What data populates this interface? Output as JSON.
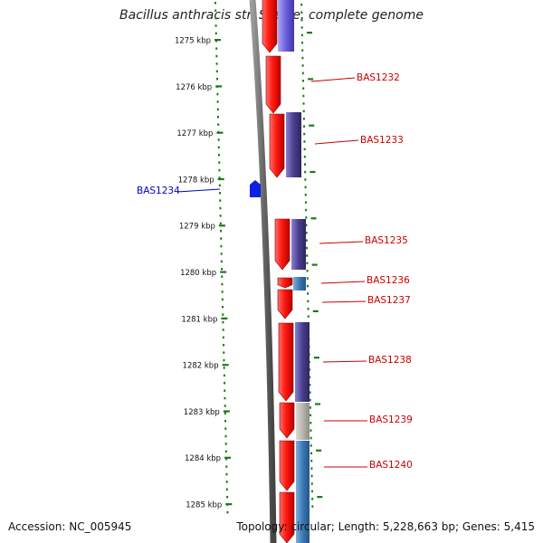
{
  "title": "Bacillus anthracis str. Sterne, complete genome",
  "footer": {
    "accession": "Accession: NC_005945",
    "summary": "Topology: circular; Length: 5,228,663 bp; Genes: 5,415"
  },
  "colors": {
    "forward_gene": "#e8201c",
    "reverse_gene_purple": "#4a3f8f",
    "reverse_gene_blue": "#3b78b4",
    "reverse_gene_grey": "#b8b4ae",
    "left_gene": "#1020e0",
    "tick": "#1a7a1a",
    "label_red": "#cc0000",
    "label_blue": "#0000cc"
  },
  "ruler": {
    "unit": "kbp",
    "ticks": [
      {
        "value": 1275,
        "label": "1275 kbp"
      },
      {
        "value": 1276,
        "label": "1276 kbp"
      },
      {
        "value": 1277,
        "label": "1277 kbp"
      },
      {
        "value": 1278,
        "label": "1278 kbp"
      },
      {
        "value": 1279,
        "label": "1279 kbp"
      },
      {
        "value": 1280,
        "label": "1280 kbp"
      },
      {
        "value": 1281,
        "label": "1281 kbp"
      },
      {
        "value": 1282,
        "label": "1282 kbp"
      },
      {
        "value": 1283,
        "label": "1283 kbp"
      },
      {
        "value": 1284,
        "label": "1284 kbp"
      },
      {
        "value": 1285,
        "label": "1285 kbp"
      }
    ]
  },
  "genes": [
    {
      "label": "BAS1234",
      "side": "left"
    },
    {
      "label": "BAS1232",
      "side": "right"
    },
    {
      "label": "BAS1233",
      "side": "right"
    },
    {
      "label": "BAS1235",
      "side": "right"
    },
    {
      "label": "BAS1236",
      "side": "right"
    },
    {
      "label": "BAS1237",
      "side": "right"
    },
    {
      "label": "BAS1238",
      "side": "right"
    },
    {
      "label": "BAS1239",
      "side": "right"
    },
    {
      "label": "BAS1240",
      "side": "right"
    }
  ]
}
